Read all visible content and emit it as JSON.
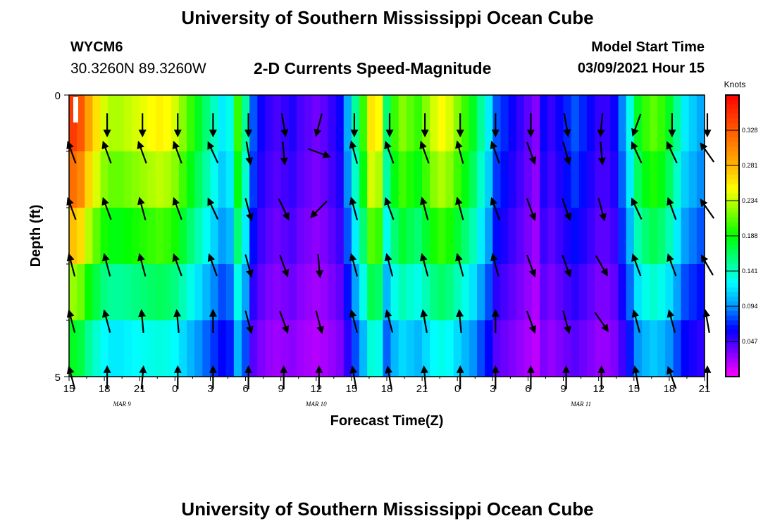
{
  "header": {
    "title": "University of Southern Mississippi Ocean Cube",
    "station": "WYCM6",
    "coords": "30.3260N 89.3260W",
    "subtitle": "2-D Currents Speed-Magnitude",
    "model_start_label": "Model Start Time",
    "model_start_value": "03/09/2021 Hour 15"
  },
  "footer": {
    "title": "University of Southern Mississippi Ocean Cube"
  },
  "chart_data": {
    "type": "heatmap",
    "xlabel": "Forecast Time(Z)",
    "ylabel": "Depth (ft)",
    "x_tick_labels": [
      "15",
      "18",
      "21",
      "0",
      "3",
      "6",
      "9",
      "12",
      "15",
      "18",
      "21",
      "0",
      "3",
      "6",
      "9",
      "12",
      "15",
      "18",
      "21"
    ],
    "x_range_hours": [
      0,
      54
    ],
    "date_labels": [
      {
        "text": "MAR  9",
        "hour": 4.5
      },
      {
        "text": "MAR  10",
        "hour": 21
      },
      {
        "text": "MAR  11",
        "hour": 43.5
      }
    ],
    "y_tick_labels": [
      "0",
      "5"
    ],
    "ylim": [
      0,
      5
    ],
    "colorbar": {
      "unit": "Knots",
      "tick_labels": [
        "0.328",
        "0.281",
        "0.234",
        "0.188",
        "0.141",
        "0.094",
        "0.047"
      ],
      "range": [
        0,
        0.375
      ],
      "colors": [
        "#ff00ff",
        "#8000ff",
        "#0000ff",
        "#0096ff",
        "#00ffff",
        "#00ff80",
        "#00ff00",
        "#80ff00",
        "#ffff00",
        "#ffb400",
        "#ff7800",
        "#ff3c00",
        "#ff0000"
      ]
    },
    "depth_rows": 5,
    "column_speeds": [
      0.345,
      0.33,
      0.29,
      0.262,
      0.24,
      0.23,
      0.23,
      0.235,
      0.24,
      0.245,
      0.25,
      0.255,
      0.25,
      0.24,
      0.22,
      0.2,
      0.18,
      0.16,
      0.14,
      0.12,
      0.13,
      0.2,
      0.15,
      0.08,
      0.06,
      0.05,
      0.045,
      0.05,
      0.055,
      0.045,
      0.04,
      0.035,
      0.04,
      0.05,
      0.06,
      0.1,
      0.15,
      0.2,
      0.26,
      0.25,
      0.16,
      0.2,
      0.22,
      0.21,
      0.2,
      0.22,
      0.24,
      0.25,
      0.24,
      0.22,
      0.2,
      0.18,
      0.15,
      0.12,
      0.08,
      0.07,
      0.06,
      0.05,
      0.04,
      0.03,
      0.06,
      0.05,
      0.06,
      0.07,
      0.08,
      0.07,
      0.06,
      0.05,
      0.05,
      0.06,
      0.09,
      0.13,
      0.18,
      0.2,
      0.21,
      0.2,
      0.18,
      0.15,
      0.12,
      0.11,
      0.1
    ],
    "row_factors": [
      1.0,
      0.92,
      0.8,
      0.65,
      0.52
    ],
    "vectors": {
      "hours": [
        0,
        3,
        6,
        9,
        12,
        15,
        18,
        21,
        24,
        27,
        30,
        33,
        36,
        39,
        42,
        45,
        48,
        51,
        54
      ],
      "angles_deg_from_north_cw": [
        [
          null,
          180,
          180,
          180,
          180,
          180,
          170,
          195,
          180,
          180,
          180,
          180,
          180,
          180,
          170,
          185,
          200,
          180,
          180
        ],
        [
          340,
          340,
          340,
          340,
          335,
          170,
          175,
          110,
          345,
          340,
          340,
          345,
          340,
          160,
          165,
          175,
          335,
          335,
          325
        ],
        [
          340,
          340,
          345,
          340,
          335,
          165,
          155,
          225,
          345,
          340,
          345,
          345,
          340,
          160,
          160,
          165,
          335,
          340,
          325
        ],
        [
          345,
          345,
          345,
          340,
          340,
          165,
          160,
          175,
          345,
          345,
          345,
          345,
          345,
          160,
          160,
          150,
          340,
          340,
          330
        ],
        [
          345,
          345,
          355,
          355,
          0,
          165,
          160,
          165,
          345,
          345,
          350,
          355,
          0,
          160,
          165,
          145,
          345,
          345,
          350
        ],
        [
          345,
          0,
          5,
          0,
          0,
          0,
          0,
          0,
          350,
          350,
          355,
          0,
          0,
          0,
          0,
          0,
          350,
          340,
          0
        ]
      ]
    }
  }
}
